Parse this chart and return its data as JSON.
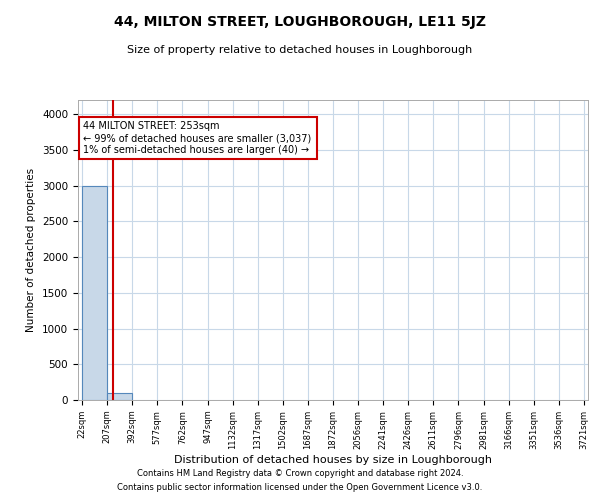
{
  "title": "44, MILTON STREET, LOUGHBOROUGH, LE11 5JZ",
  "subtitle": "Size of property relative to detached houses in Loughborough",
  "xlabel": "Distribution of detached houses by size in Loughborough",
  "ylabel": "Number of detached properties",
  "property_size": 253,
  "property_label": "44 MILTON STREET: 253sqm",
  "annotation_line1": "← 99% of detached houses are smaller (3,037)",
  "annotation_line2": "1% of semi-detached houses are larger (40) →",
  "bar_edges": [
    22,
    207,
    392,
    577,
    762,
    947,
    1132,
    1317,
    1502,
    1687,
    1872,
    2056,
    2241,
    2426,
    2611,
    2796,
    2981,
    3166,
    3351,
    3536,
    3721
  ],
  "bar_heights": [
    3000,
    100,
    0,
    0,
    0,
    0,
    0,
    0,
    0,
    0,
    0,
    0,
    0,
    0,
    0,
    0,
    0,
    0,
    0,
    0
  ],
  "bar_color": "#c8d8e8",
  "bar_edge_color": "#5588bb",
  "red_line_color": "#cc0000",
  "annotation_box_color": "#cc0000",
  "grid_color": "#c8d8e8",
  "background_color": "#ffffff",
  "ylim": [
    0,
    4200
  ],
  "yticks": [
    0,
    500,
    1000,
    1500,
    2000,
    2500,
    3000,
    3500,
    4000
  ],
  "footnote1": "Contains HM Land Registry data © Crown copyright and database right 2024.",
  "footnote2": "Contains public sector information licensed under the Open Government Licence v3.0."
}
